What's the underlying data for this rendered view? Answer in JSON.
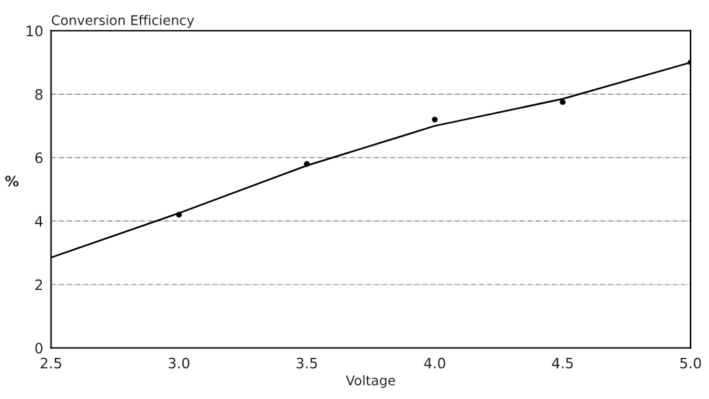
{
  "chart_data": {
    "type": "scatter",
    "title": "Conversion Efficiency",
    "xlabel": "Voltage",
    "ylabel": "%",
    "x": [
      3.0,
      3.5,
      4.0,
      4.5,
      5.0
    ],
    "series": [
      {
        "color": "#000000",
        "marker": "circle",
        "values": [
          4.2,
          5.8,
          7.2,
          7.75,
          9.0
        ]
      },
      {
        "type": "line",
        "color": "#000000",
        "marker": "none",
        "line_style": "solid",
        "x": [
          2.5,
          3.0,
          3.5,
          3.9,
          4.0,
          4.5,
          5.0
        ],
        "values": [
          2.85,
          4.25,
          5.75,
          6.75,
          7.0,
          7.85,
          9.0
        ]
      }
    ],
    "xlim": [
      2.5,
      5.0
    ],
    "xticks": [
      {
        "value": 2.5,
        "label": "2.5"
      },
      {
        "value": 3.0,
        "label": "3.0"
      },
      {
        "value": 3.5,
        "label": "3.5"
      },
      {
        "value": 4.0,
        "label": "4.0"
      },
      {
        "value": 4.5,
        "label": "4.5"
      },
      {
        "value": 5.0,
        "label": "5.0"
      }
    ],
    "ylim": [
      0,
      10
    ],
    "yticks": [
      0,
      2,
      4,
      6,
      8,
      10
    ],
    "grid": "y",
    "legend": false
  }
}
